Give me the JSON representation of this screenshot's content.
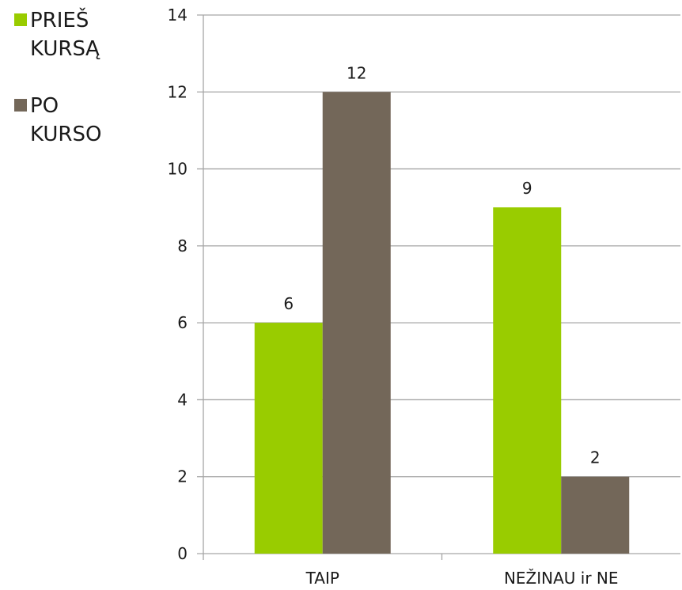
{
  "colors": {
    "series_1": "#99CC00",
    "series_2": "#736759",
    "grid": "#a6a6a6"
  },
  "chart_data": {
    "type": "bar",
    "title": "",
    "xlabel": "",
    "ylabel": "",
    "categories": [
      "TAIP",
      "NEŽINAU ir NE"
    ],
    "series": [
      {
        "name": "PRIEŠ KURSĄ",
        "values": [
          6,
          9
        ]
      },
      {
        "name": "PO KURSO",
        "values": [
          12,
          2
        ]
      }
    ],
    "ylim": [
      0,
      14
    ],
    "yticks": [
      "0",
      "2",
      "4",
      "6",
      "8",
      "10",
      "12",
      "14"
    ],
    "data_labels": [
      [
        "6",
        "9"
      ],
      [
        "12",
        "2"
      ]
    ],
    "grid": true,
    "legend_position": "top-left"
  }
}
